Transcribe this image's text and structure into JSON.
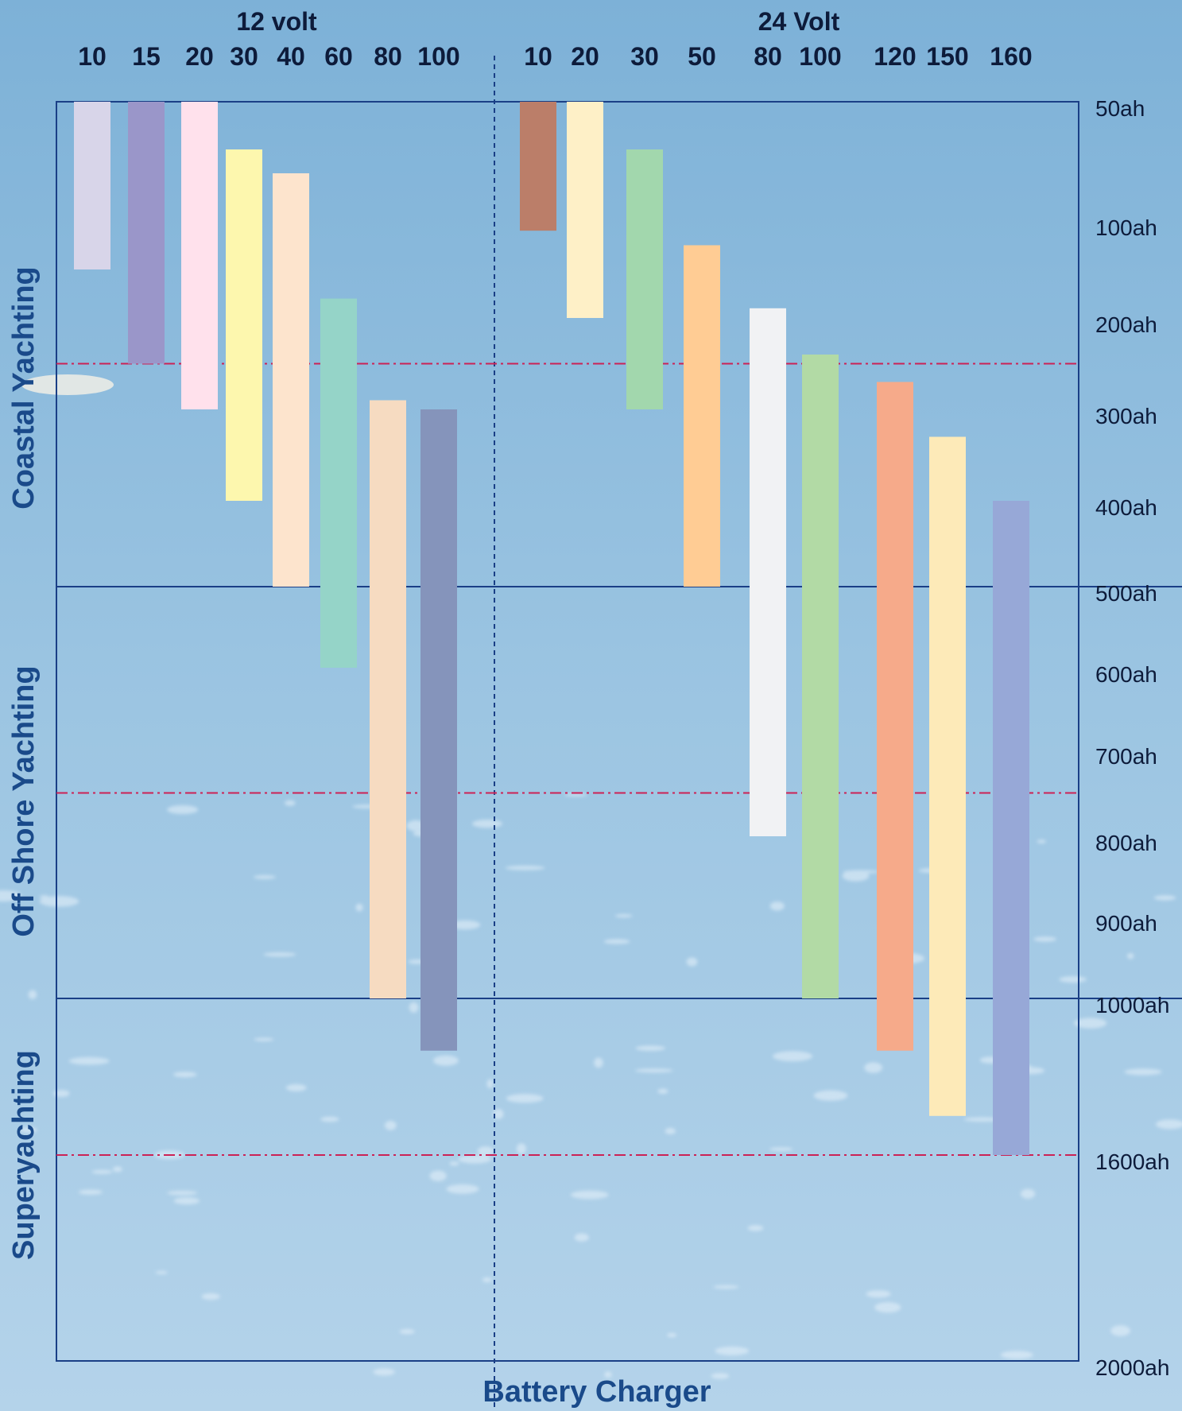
{
  "chart_data": {
    "type": "bar",
    "title": "",
    "xlabel": "Battery Charger",
    "groups": [
      {
        "label": "12 volt",
        "categories": [
          "10",
          "15",
          "20",
          "30",
          "40",
          "60",
          "80",
          "100"
        ],
        "ranges_ah": [
          [
            50,
            150
          ],
          [
            50,
            250
          ],
          [
            50,
            300
          ],
          [
            70,
            400
          ],
          [
            80,
            500
          ],
          [
            180,
            600
          ],
          [
            290,
            1000
          ],
          [
            300,
            1200
          ]
        ],
        "colors": [
          "#d8d5e9",
          "#9a96c9",
          "#ffe1ec",
          "#fdf7ae",
          "#fde4cd",
          "#95d4c8",
          "#f6dbc1",
          "#8594bb"
        ]
      },
      {
        "label": "24 Volt",
        "categories": [
          "10",
          "20",
          "30",
          "50",
          "80",
          "100",
          "120",
          "150",
          "160"
        ],
        "ranges_ah": [
          [
            50,
            110
          ],
          [
            50,
            200
          ],
          [
            70,
            300
          ],
          [
            125,
            500
          ],
          [
            190,
            800
          ],
          [
            240,
            1000
          ],
          [
            270,
            1200
          ],
          [
            330,
            1450
          ],
          [
            400,
            1600
          ]
        ],
        "colors": [
          "#bb7e69",
          "#fef0c7",
          "#a2d7ad",
          "#ffcc94",
          "#f1f2f4",
          "#b2daa5",
          "#f6aa8a",
          "#fdeab8",
          "#97a8d7"
        ]
      }
    ],
    "y_axis": {
      "unit": "ah",
      "ticks": [
        50,
        100,
        200,
        300,
        400,
        500,
        600,
        700,
        800,
        900,
        1000,
        1600,
        2000
      ],
      "tick_labels": [
        "50ah",
        "100ah",
        "200ah",
        "300ah",
        "400ah",
        "500ah",
        "600ah",
        "700ah",
        "800ah",
        "900ah",
        "1000ah",
        "1600ah",
        "2000ah"
      ],
      "range": [
        50,
        2000
      ],
      "direction": "downward"
    },
    "segments": [
      {
        "label": "Coastal Yachting",
        "range_ah": [
          50,
          500
        ]
      },
      {
        "label": "Off Shore Yachting",
        "range_ah": [
          500,
          1000
        ]
      },
      {
        "label": "Superyachting",
        "range_ah": [
          1000,
          2000
        ]
      }
    ],
    "solid_lines_ah": [
      500,
      1000
    ],
    "dash_dot_lines_ah": [
      250,
      750,
      1600
    ],
    "dash_dot_color": "#cc2255",
    "solid_line_color": "#1a3f86"
  }
}
